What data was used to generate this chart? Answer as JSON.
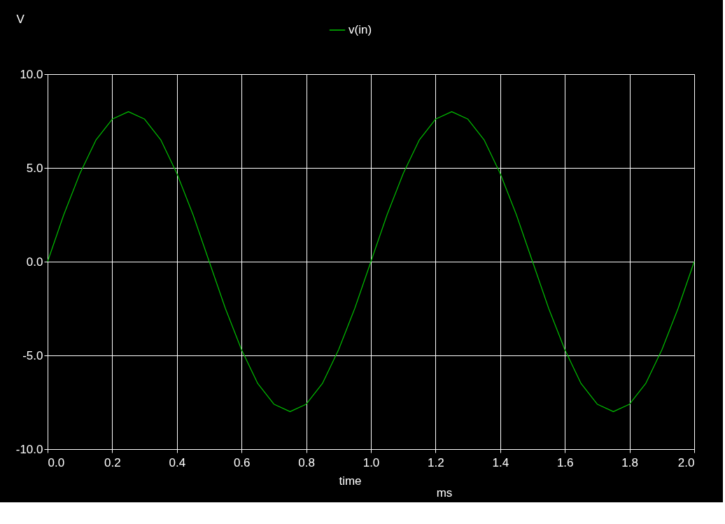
{
  "chart_data": {
    "type": "line",
    "ylabel": "V",
    "xlabel": "time",
    "annotations": [
      "ms"
    ],
    "legend": "top",
    "grid": true,
    "x": [
      0,
      0.05,
      0.1,
      0.15,
      0.2,
      0.25,
      0.3,
      0.35,
      0.4,
      0.45,
      0.5,
      0.55,
      0.6,
      0.65,
      0.7,
      0.75,
      0.8,
      0.85,
      0.9,
      0.95,
      1.0,
      1.05,
      1.1,
      1.15,
      1.2,
      1.25,
      1.3,
      1.35,
      1.4,
      1.45,
      1.5,
      1.55,
      1.6,
      1.65,
      1.7,
      1.75,
      1.8,
      1.85,
      1.9,
      1.95,
      2.0
    ],
    "series": [
      {
        "name": "v(in)",
        "color": "#00c000",
        "values": [
          0,
          2.5,
          4.7,
          6.5,
          7.6,
          8.0,
          7.6,
          6.5,
          4.7,
          2.5,
          0,
          -2.5,
          -4.7,
          -6.5,
          -7.6,
          -8.0,
          -7.6,
          -6.5,
          -4.7,
          -2.5,
          0,
          2.5,
          4.7,
          6.5,
          7.6,
          8.0,
          7.6,
          6.5,
          4.7,
          2.5,
          0,
          -2.5,
          -4.7,
          -6.5,
          -7.6,
          -8.0,
          -7.6,
          -6.5,
          -4.7,
          -2.5,
          0
        ]
      }
    ],
    "xlim": [
      0,
      2
    ],
    "ylim": [
      -10,
      10
    ],
    "xticks": [
      {
        "value": 0,
        "label": "0.0"
      },
      0.2,
      0.4,
      0.6,
      0.8,
      {
        "value": 1,
        "label": "1.0"
      },
      1.2,
      1.4,
      1.6,
      1.8,
      {
        "value": 2,
        "label": "2.0"
      }
    ],
    "yticks": [
      {
        "value": -10,
        "label": "-10.0"
      },
      {
        "value": -5,
        "label": "-5.0"
      },
      {
        "value": 0,
        "label": "0.0"
      },
      {
        "value": 5,
        "label": "5.0"
      },
      {
        "value": 10,
        "label": "10.0"
      }
    ]
  }
}
